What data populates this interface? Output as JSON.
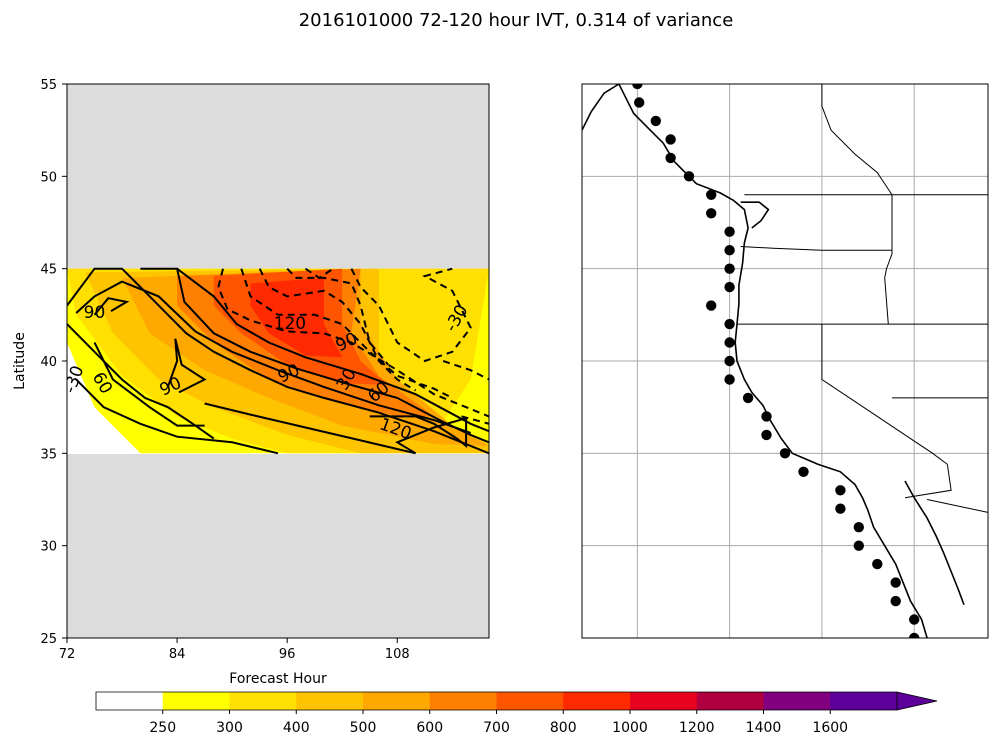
{
  "figure": {
    "title": "2016101000 72-120 hour IVT, 0.314 of variance"
  },
  "chart_data": [
    {
      "type": "contour",
      "xlabel": "Forecast Hour",
      "ylabel": "Latitude",
      "xlim": [
        72,
        118
      ],
      "ylim": [
        25,
        55
      ],
      "xticks": [
        72,
        84,
        96,
        108
      ],
      "yticks": [
        25,
        30,
        35,
        40,
        45,
        50,
        55
      ],
      "data_lat_range": [
        35,
        45
      ],
      "fill_levels": [
        {
          "from": 0,
          "to": 250,
          "color": "#ffffff"
        },
        {
          "from": 250,
          "to": 300,
          "color": "#ffff00"
        },
        {
          "from": 300,
          "to": 400,
          "color": "#ffe000"
        },
        {
          "from": 400,
          "to": 500,
          "color": "#ffc400"
        },
        {
          "from": 500,
          "to": 600,
          "color": "#ffa800"
        },
        {
          "from": 600,
          "to": 700,
          "color": "#ff8000"
        },
        {
          "from": 700,
          "to": 800,
          "color": "#ff5500"
        },
        {
          "from": 800,
          "to": 1000,
          "color": "#ff2a00"
        }
      ],
      "contour_labels": [
        {
          "text": "90",
          "x": 75,
          "y": 42.6,
          "rotation": 0
        },
        {
          "text": "60",
          "x": 75.8,
          "y": 38.8,
          "rotation": -60
        },
        {
          "text": "90",
          "x": 83.3,
          "y": 38.6,
          "rotation": 25
        },
        {
          "text": "-30",
          "x": 72.8,
          "y": 39.0,
          "rotation": 70
        },
        {
          "text": "120",
          "x": 96.3,
          "y": 42.0,
          "rotation": 0
        },
        {
          "text": "90",
          "x": 96.2,
          "y": 39.3,
          "rotation": 25
        },
        {
          "text": "90",
          "x": 102.5,
          "y": 41.0,
          "rotation": 25
        },
        {
          "text": "30",
          "x": 102.5,
          "y": 39.0,
          "rotation": 60
        },
        {
          "text": "60",
          "x": 106.0,
          "y": 38.3,
          "rotation": 40
        },
        {
          "text": "120",
          "x": 107.8,
          "y": 36.3,
          "rotation": -20
        },
        {
          "text": "-30",
          "x": 114.5,
          "y": 42.3,
          "rotation": 60
        }
      ]
    },
    {
      "type": "map",
      "region": "U.S. West Coast",
      "lon_range": [
        -136,
        -114
      ],
      "lat_range": [
        25,
        55
      ],
      "points": [
        [
          -133.0,
          55.0
        ],
        [
          -132.9,
          54.0
        ],
        [
          -132.0,
          53.0
        ],
        [
          -131.2,
          52.0
        ],
        [
          -131.2,
          51.0
        ],
        [
          -130.2,
          50.0
        ],
        [
          -129.0,
          49.0
        ],
        [
          -129.0,
          48.0
        ],
        [
          -128.0,
          47.0
        ],
        [
          -128.0,
          46.0
        ],
        [
          -128.0,
          45.0
        ],
        [
          -128.0,
          44.0
        ],
        [
          -129.0,
          43.0
        ],
        [
          -128.0,
          42.0
        ],
        [
          -128.0,
          41.0
        ],
        [
          -128.0,
          40.0
        ],
        [
          -128.0,
          39.0
        ],
        [
          -127.0,
          38.0
        ],
        [
          -126.0,
          37.0
        ],
        [
          -126.0,
          36.0
        ],
        [
          -125.0,
          35.0
        ],
        [
          -124.0,
          34.0
        ],
        [
          -122.0,
          33.0
        ],
        [
          -122.0,
          32.0
        ],
        [
          -121.0,
          31.0
        ],
        [
          -121.0,
          30.0
        ],
        [
          -120.0,
          29.0
        ],
        [
          -119.0,
          28.0
        ],
        [
          -119.0,
          27.0
        ],
        [
          -118.0,
          26.0
        ],
        [
          -118.0,
          25.0
        ]
      ]
    },
    {
      "type": "colorbar",
      "ticks": [
        250,
        300,
        400,
        500,
        600,
        700,
        800,
        1000,
        1200,
        1400,
        1600
      ],
      "segments": [
        {
          "from": 0,
          "to": 250,
          "color": "#ffffff"
        },
        {
          "from": 250,
          "to": 300,
          "color": "#ffff00"
        },
        {
          "from": 300,
          "to": 400,
          "color": "#ffe000"
        },
        {
          "from": 400,
          "to": 500,
          "color": "#ffc400"
        },
        {
          "from": 500,
          "to": 600,
          "color": "#ffa800"
        },
        {
          "from": 600,
          "to": 700,
          "color": "#ff8000"
        },
        {
          "from": 700,
          "to": 800,
          "color": "#ff5500"
        },
        {
          "from": 800,
          "to": 1000,
          "color": "#ff2a00"
        },
        {
          "from": 1000,
          "to": 1200,
          "color": "#e8001f"
        },
        {
          "from": 1200,
          "to": 1400,
          "color": "#b00040"
        },
        {
          "from": 1400,
          "to": 1600,
          "color": "#800080"
        },
        {
          "from": 1600,
          "to": 1800,
          "color": "#5c0099"
        }
      ],
      "extend": "max"
    }
  ]
}
